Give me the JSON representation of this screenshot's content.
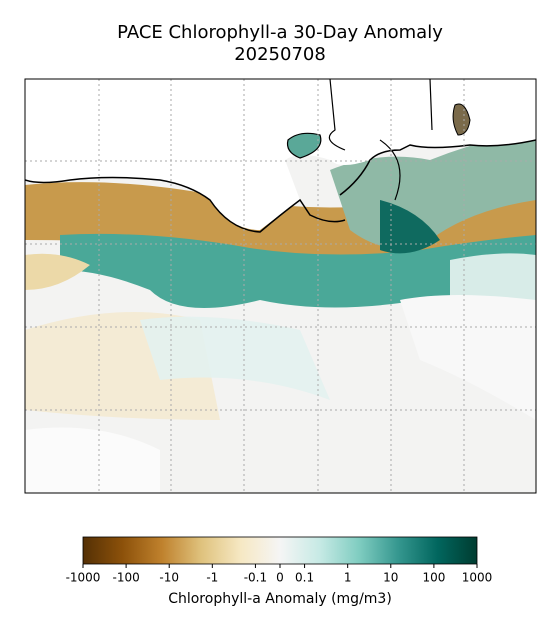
{
  "chart_data": {
    "type": "map",
    "title": "PACE Chlorophyll-a 30-Day Anomaly",
    "subtitle": "20250708",
    "colorbar_label": "Chlorophyll-a Anomaly (mg/m3)",
    "scale": "symlog",
    "clim": [
      -1000,
      1000
    ],
    "cticks": [
      -1000,
      -100,
      -10,
      -1,
      -0.1,
      0,
      0.1,
      1,
      10,
      100,
      1000
    ],
    "colormap": [
      "#543005",
      "#8c510a",
      "#bf812d",
      "#dfc27d",
      "#f6e8c3",
      "#f5f5f5",
      "#c7eae5",
      "#80cdc1",
      "#35978f",
      "#01665e",
      "#003c30"
    ]
  }
}
